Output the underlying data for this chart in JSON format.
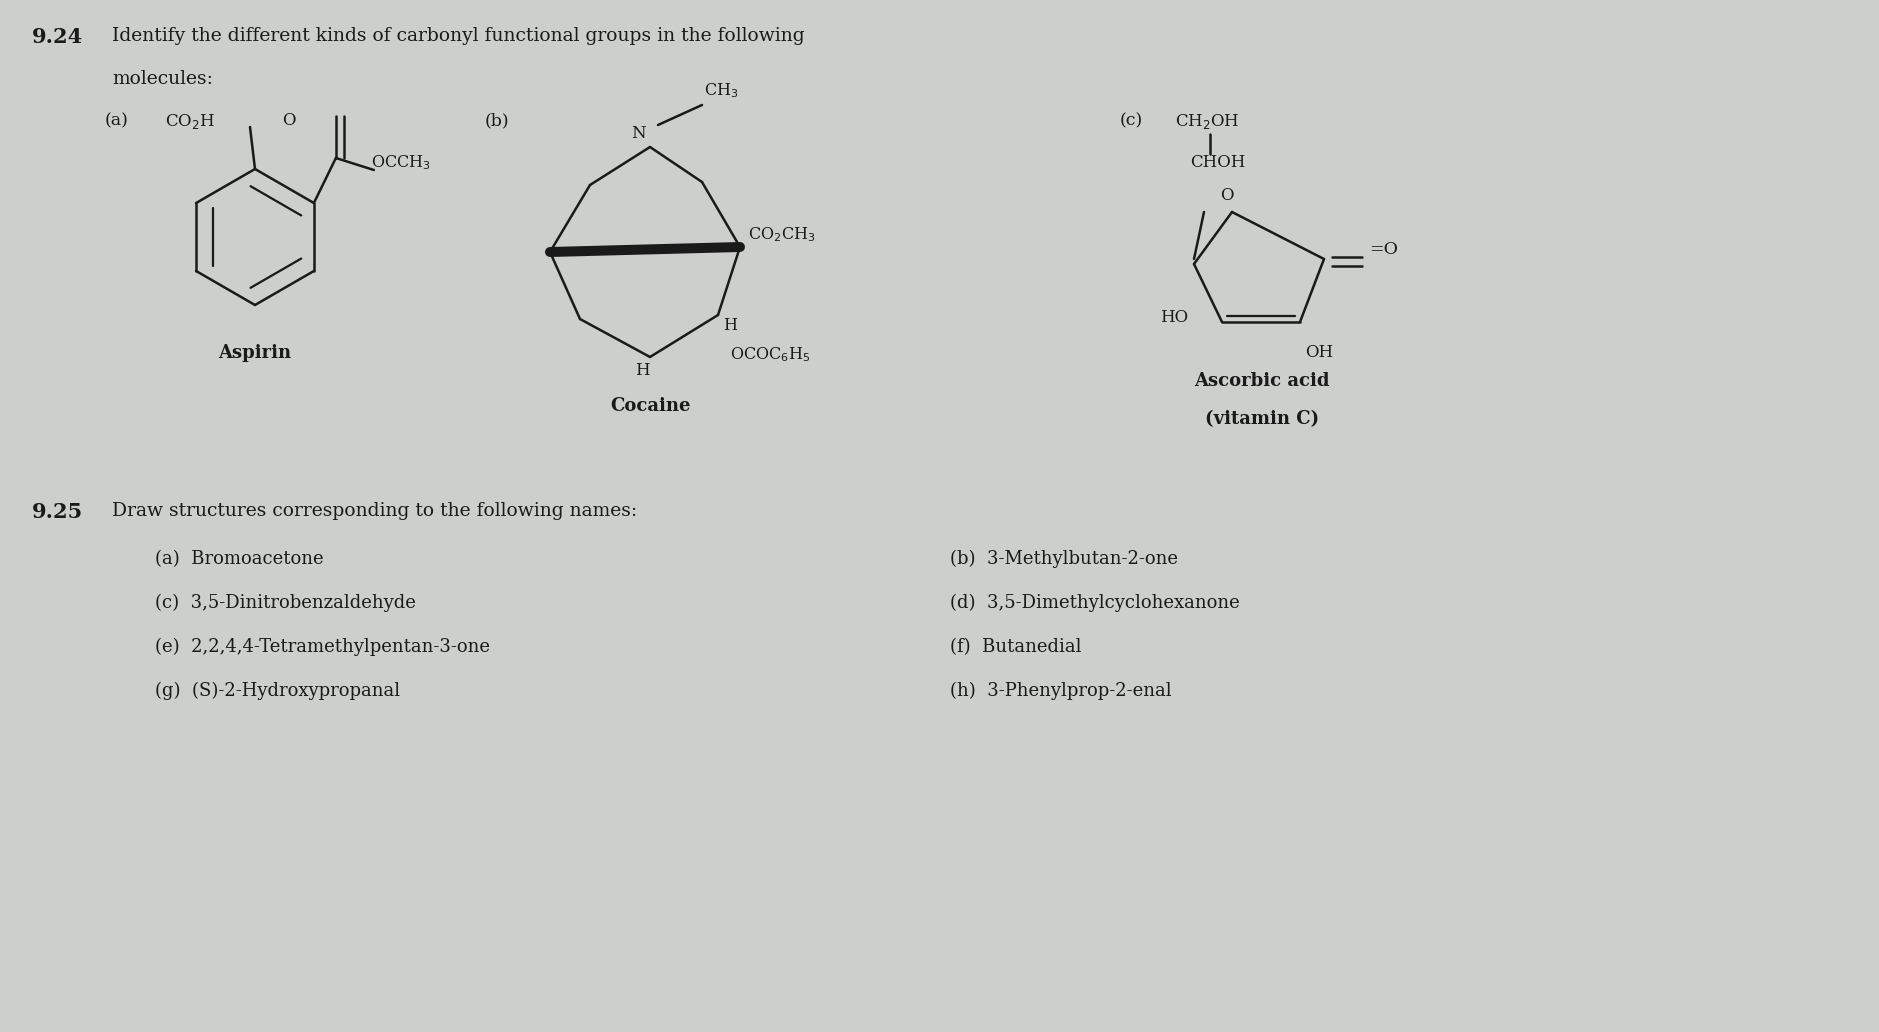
{
  "bg_color": "#cccfcc",
  "text_color": "#1a1a1a",
  "title_924": "9.24",
  "title_924_text": "Identify the different kinds of carbonyl functional groups in the following",
  "title_924_text2": "molecules:",
  "title_925": "9.25",
  "title_925_text": "Draw structures corresponding to the following names:",
  "items_925_left": [
    "(a)  Bromoacetone",
    "(c)  3,5-Dinitrobenzaldehyde",
    "(e)  2,2,4,4-Tetramethylpentan-3-one",
    "(g)  (S)-2-Hydroxypropanal"
  ],
  "items_925_right": [
    "(b)  3-Methylbutan-2-one",
    "(d)  3,5-Dimethylcyclohexanone",
    "(f)  Butanedial",
    "(h)  3-Phenylprop-2-enal"
  ],
  "label_a": "(a)",
  "label_b": "(b)",
  "label_c": "(c)",
  "aspirin_label": "Aspirin",
  "cocaine_label": "Cocaine",
  "ascorbic_label": "Ascorbic acid\n(vitamin C)"
}
